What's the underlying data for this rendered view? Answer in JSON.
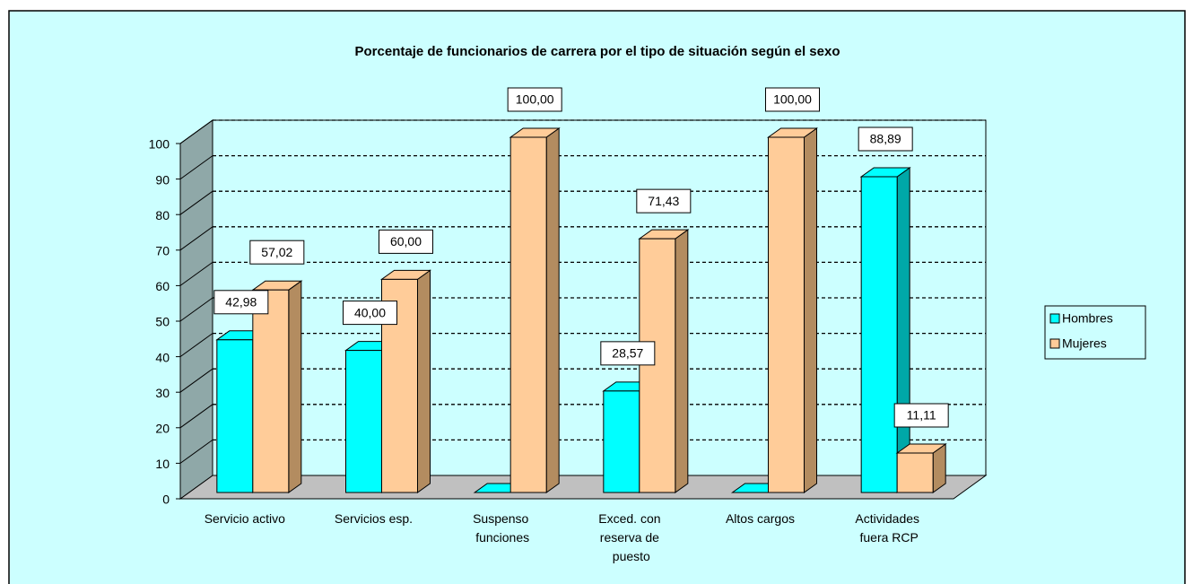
{
  "chart_data": {
    "type": "bar3d",
    "title": "Porcentaje de funcionarios de carrera por el tipo de situación  según el sexo",
    "categories": [
      "Servicio activo",
      "Servicios esp.",
      "Suspenso funciones",
      "Exced. con reserva de puesto",
      "Altos cargos",
      "Actividades fuera RCP"
    ],
    "series": [
      {
        "name": "Hombres",
        "color": "#00FFFF",
        "values": [
          42.98,
          40.0,
          0,
          28.57,
          0,
          88.89
        ],
        "value_labels": [
          "42,98",
          "40,00",
          null,
          "28,57",
          null,
          "88,89"
        ]
      },
      {
        "name": "Mujeres",
        "color": "#FFCC99",
        "values": [
          57.02,
          60.0,
          100.0,
          71.43,
          100.0,
          11.11
        ],
        "value_labels": [
          "57,02",
          "60,00",
          "100,00",
          "71,43",
          "100,00",
          "11,11"
        ]
      }
    ],
    "ylim": [
      0,
      100
    ],
    "yticks": [
      0,
      10,
      20,
      30,
      40,
      50,
      60,
      70,
      80,
      90,
      100
    ],
    "grid": true,
    "legend": "right"
  }
}
